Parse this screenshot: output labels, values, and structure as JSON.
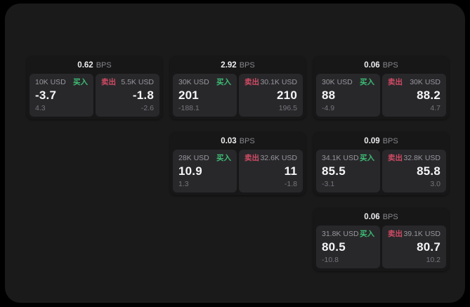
{
  "colors": {
    "background_outer": "#000000",
    "surface": "#1a1a1b",
    "card_bg": "#171718",
    "tile_bg": "#28282b",
    "buy_green": "#3dbd74",
    "sell_red": "#d14b64",
    "text_primary": "#f5f5f7",
    "text_secondary": "#97979d",
    "text_dim": "#76767b"
  },
  "labels": {
    "bps": "BPS",
    "buy": "买入",
    "sell": "卖出"
  },
  "cards": [
    {
      "row": 1,
      "col": 1,
      "bps_value": "0.62",
      "buy": {
        "size": "10K USD",
        "price": "-3.7",
        "change": "4.3"
      },
      "sell": {
        "size": "5.5K USD",
        "price": "-1.8",
        "change": "-2.6"
      }
    },
    {
      "row": 1,
      "col": 2,
      "bps_value": "2.92",
      "buy": {
        "size": "30K USD",
        "price": "201",
        "change": "-188.1"
      },
      "sell": {
        "size": "30.1K USD",
        "price": "210",
        "change": "196.5"
      }
    },
    {
      "row": 1,
      "col": 3,
      "bps_value": "0.06",
      "buy": {
        "size": "30K USD",
        "price": "88",
        "change": "-4.9"
      },
      "sell": {
        "size": "30K USD",
        "price": "88.2",
        "change": "4.7"
      }
    },
    {
      "row": 2,
      "col": 2,
      "bps_value": "0.03",
      "buy": {
        "size": "28K USD",
        "price": "10.9",
        "change": "1.3"
      },
      "sell": {
        "size": "32.6K USD",
        "price": "11",
        "change": "-1.8"
      }
    },
    {
      "row": 2,
      "col": 3,
      "bps_value": "0.09",
      "buy": {
        "size": "34.1K USD",
        "price": "85.5",
        "change": "-3.1"
      },
      "sell": {
        "size": "32.8K USD",
        "price": "85.8",
        "change": "3.0"
      }
    },
    {
      "row": 3,
      "col": 3,
      "bps_value": "0.06",
      "buy": {
        "size": "31.8K USD",
        "price": "80.5",
        "change": "-10.8"
      },
      "sell": {
        "size": "39.1K USD",
        "price": "80.7",
        "change": "10.2"
      }
    }
  ]
}
